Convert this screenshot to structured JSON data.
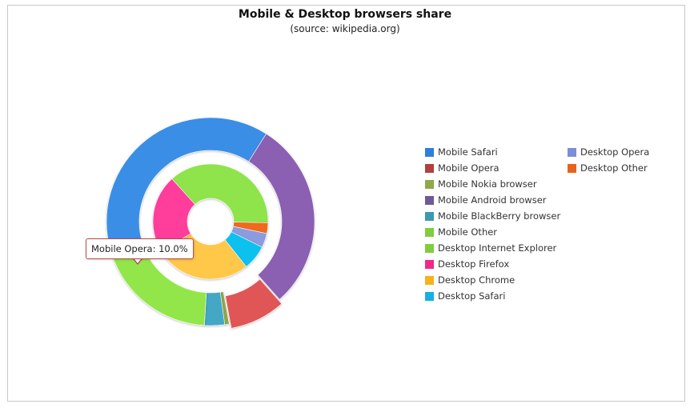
{
  "chart_data": {
    "type": "pie",
    "subtype": "nested-donut",
    "title": "Mobile & Desktop browsers share",
    "subtitle": "(source: wikipedia.org)",
    "outer_ring": [
      {
        "name": "Mobile Safari",
        "value": 45.0,
        "color": "#3a8ee6"
      },
      {
        "name": "Mobile Android browser",
        "value": 34.0,
        "color": "#8b5fb1"
      },
      {
        "name": "Mobile Opera",
        "value": 10.0,
        "color": "#e05454"
      },
      {
        "name": "Mobile Nokia browser",
        "value": 0.8,
        "color": "#8fa84a"
      },
      {
        "name": "Mobile BlackBerry browser",
        "value": 3.6,
        "color": "#45a7c6"
      },
      {
        "name": "Mobile Other",
        "value": 22.0,
        "color": "#92e64a"
      }
    ],
    "inner_ring": [
      {
        "name": "Desktop Internet Explorer",
        "value": 37.0,
        "color": "#8fe34c"
      },
      {
        "name": "Desktop Other",
        "value": 3.0,
        "color": "#ef6a1e"
      },
      {
        "name": "Desktop Opera",
        "value": 4.0,
        "color": "#8a9be0"
      },
      {
        "name": "Desktop Safari",
        "value": 7.0,
        "color": "#11c1ef"
      },
      {
        "name": "Desktop Chrome",
        "value": 27.0,
        "color": "#ffc84a"
      },
      {
        "name": "Desktop Firefox",
        "value": 22.0,
        "color": "#ff3d9a"
      }
    ],
    "legend_position": "right",
    "legend": [
      {
        "name": "Mobile Safari",
        "color": "#2f7fd8"
      },
      {
        "name": "Mobile Opera",
        "color": "#b0413e"
      },
      {
        "name": "Mobile Nokia browser",
        "color": "#8fa84a"
      },
      {
        "name": "Mobile Android browser",
        "color": "#6f5a96"
      },
      {
        "name": "Mobile BlackBerry browser",
        "color": "#3e98b3"
      },
      {
        "name": "Mobile Other",
        "color": "#7fce3e"
      },
      {
        "name": "Desktop Internet Explorer",
        "color": "#7fce3e"
      },
      {
        "name": "Desktop Firefox",
        "color": "#f0288a"
      },
      {
        "name": "Desktop Chrome",
        "color": "#f6b21a"
      },
      {
        "name": "Desktop Safari",
        "color": "#16b0e0"
      },
      {
        "name": "Desktop Opera",
        "color": "#7b8ed8"
      },
      {
        "name": "Desktop Other",
        "color": "#e8631a"
      }
    ],
    "tooltip": {
      "text": "Mobile Opera: 10.0%"
    }
  }
}
